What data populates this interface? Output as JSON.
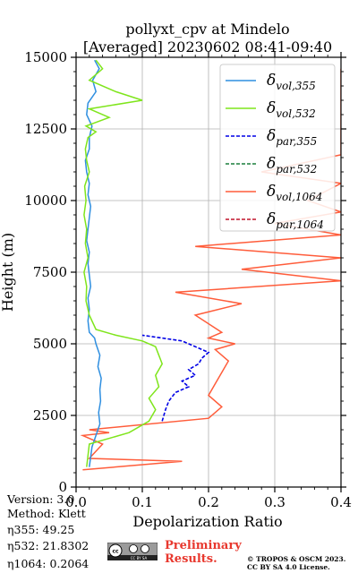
{
  "chart_data": {
    "type": "line",
    "title": "pollyxt_cpv at Mindelo",
    "subtitle": "[Averaged] 20230602 08:41-09:40",
    "xlabel": "Depolarization Ratio",
    "ylabel": "Height (m)",
    "xlim": [
      0,
      0.4
    ],
    "ylim": [
      0,
      15000
    ],
    "xticks": [
      "0.0",
      "0.1",
      "0.2",
      "0.3",
      "0.4"
    ],
    "yticks": [
      "0",
      "2500",
      "5000",
      "7500",
      "10000",
      "12500",
      "15000"
    ],
    "grid": true,
    "legend_position": "top-right",
    "series": [
      {
        "name": "δ_vol,355",
        "color": "#2f8fe0",
        "style": "solid",
        "x": [
          0.02,
          0.024,
          0.03,
          0.036,
          0.034,
          0.037,
          0.036,
          0.038,
          0.033,
          0.036,
          0.03,
          0.028,
          0.02,
          0.018,
          0.02,
          0.018,
          0.022,
          0.02,
          0.018,
          0.02,
          0.016,
          0.018,
          0.02,
          0.022,
          0.018,
          0.02,
          0.016,
          0.014,
          0.02,
          0.02,
          0.024,
          0.016,
          0.018,
          0.03,
          0.025,
          0.035,
          0.028
        ],
        "y": [
          700,
          1400,
          1800,
          2200,
          2600,
          3000,
          3400,
          3800,
          4200,
          4600,
          5000,
          5200,
          5400,
          5800,
          6200,
          6600,
          7000,
          7400,
          7800,
          8200,
          8600,
          9000,
          9400,
          9800,
          10200,
          10600,
          11000,
          11400,
          11800,
          12200,
          12600,
          13000,
          13400,
          13800,
          14200,
          14600,
          14900
        ]
      },
      {
        "name": "δ_vol,532",
        "color": "#7fe51c",
        "style": "solid",
        "x": [
          0.016,
          0.02,
          0.08,
          0.11,
          0.12,
          0.11,
          0.125,
          0.12,
          0.13,
          0.125,
          0.12,
          0.1,
          0.06,
          0.03,
          0.02,
          0.015,
          0.016,
          0.012,
          0.018,
          0.014,
          0.016,
          0.012,
          0.015,
          0.013,
          0.02,
          0.016,
          0.014,
          0.018,
          0.03,
          0.015,
          0.05,
          0.02,
          0.1,
          0.06,
          0.02,
          0.04,
          0.03
        ],
        "y": [
          700,
          1500,
          1900,
          2300,
          2700,
          3100,
          3500,
          3900,
          4300,
          4600,
          4900,
          5100,
          5300,
          5500,
          6000,
          6500,
          7000,
          7500,
          8000,
          8500,
          9000,
          9500,
          10000,
          10500,
          11000,
          11400,
          11800,
          12200,
          12400,
          12600,
          12900,
          13200,
          13500,
          13800,
          14200,
          14600,
          14900
        ]
      },
      {
        "name": "δ_par,355",
        "color": "#0000e6",
        "style": "dashed",
        "x": [
          0.13,
          0.135,
          0.14,
          0.15,
          0.17,
          0.16,
          0.18,
          0.17,
          0.185,
          0.19,
          0.2,
          0.18,
          0.16,
          0.1
        ],
        "y": [
          2300,
          2700,
          3000,
          3300,
          3500,
          3700,
          3900,
          4100,
          4300,
          4500,
          4700,
          4900,
          5100,
          5300
        ]
      },
      {
        "name": "δ_par,532",
        "color": "#1a7f3c",
        "style": "dashed",
        "x": [],
        "y": []
      },
      {
        "name": "δ_vol,1064",
        "color": "#ff5c3a",
        "style": "solid",
        "x": [
          0.01,
          0.16,
          0.02,
          0.04,
          0.01,
          0.05,
          0.02,
          0.2,
          0.22,
          0.2,
          0.21,
          0.22,
          0.23,
          0.21,
          0.24,
          0.2,
          0.22,
          0.18,
          0.25,
          0.15,
          0.4,
          0.25,
          0.4,
          0.18,
          0.4,
          0.3,
          0.4,
          0.35,
          0.4,
          0.28,
          0.4,
          0.4,
          0.4,
          0.4,
          0.4,
          0.4
        ],
        "y": [
          600,
          900,
          1000,
          1500,
          1800,
          1900,
          2000,
          2400,
          2800,
          3200,
          3600,
          4000,
          4400,
          4800,
          5000,
          5200,
          5400,
          6000,
          6400,
          6800,
          7200,
          7600,
          8000,
          8400,
          8800,
          9200,
          9600,
          10000,
          10600,
          11000,
          11600,
          12000,
          12600,
          13200,
          13800,
          14600
        ]
      },
      {
        "name": "δ_par,1064",
        "color": "#c0142a",
        "style": "dashed",
        "x": [],
        "y": []
      }
    ]
  },
  "info": {
    "version": "Version: 3.0",
    "method": "Method: Klett",
    "eta355": "η355:  49.25",
    "eta532": "η532: 21.8302",
    "eta1064": "η1064: 0.2064"
  },
  "badge": {
    "preliminary_line1": "Preliminary",
    "preliminary_line2": "Results.",
    "copyright_line1": "© TROPOS & OSCM 2023.",
    "copyright_line2": "CC BY SA 4.0 License.",
    "cc_logo_text": "CC BY SA"
  }
}
